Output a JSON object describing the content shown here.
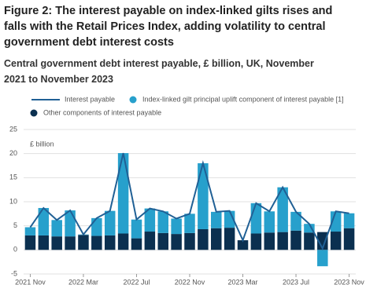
{
  "chart_data": {
    "type": "bar",
    "title": "Figure 2: The interest payable on index-linked gilts rises and falls with the Retail Prices Index, adding volatility to central government debt interest costs",
    "subtitle": "Central government debt interest payable, £ billion, UK, November 2021 to November 2023",
    "y_label": "£ billion",
    "categories": [
      "2021 Nov",
      null,
      null,
      null,
      "2022 Mar",
      null,
      null,
      null,
      "2022 Jul",
      null,
      null,
      null,
      "2022 Nov",
      null,
      null,
      null,
      "2023 Mar",
      null,
      null,
      null,
      "2023 Jul",
      null,
      null,
      null,
      "2023 Nov"
    ],
    "series": [
      {
        "name": "Other components of interest payable",
        "color": "#0b3050",
        "type": "bar",
        "values": [
          3.0,
          3.0,
          2.8,
          2.8,
          3.1,
          2.9,
          3.0,
          3.4,
          2.4,
          3.8,
          3.5,
          3.3,
          3.5,
          4.3,
          4.5,
          4.6,
          2.0,
          3.4,
          3.6,
          3.7,
          4.0,
          3.6,
          3.7,
          3.8,
          4.5
        ]
      },
      {
        "name": "Index-linked gilt principal uplift component of interest payable [1]",
        "color": "#27a0cc",
        "type": "bar",
        "values": [
          1.7,
          5.7,
          3.4,
          5.4,
          0.1,
          3.7,
          5.1,
          16.7,
          3.9,
          4.8,
          4.5,
          3.2,
          4.0,
          13.7,
          3.4,
          3.5,
          0,
          6.3,
          4.4,
          9.3,
          3.9,
          1.8,
          -3.4,
          4.2,
          3.1
        ]
      },
      {
        "name": "Interest payable",
        "color": "#206095",
        "type": "line",
        "values": [
          4.7,
          8.7,
          6.2,
          8.2,
          3.2,
          6.6,
          8.1,
          20.1,
          6.3,
          8.6,
          8.0,
          6.5,
          7.5,
          18.0,
          7.9,
          8.1,
          2.0,
          9.7,
          8.0,
          13.0,
          7.9,
          5.4,
          0.3,
          8.0,
          7.6
        ]
      }
    ],
    "ylim": [
      -5,
      25
    ],
    "yticks": [
      -5,
      0,
      5,
      10,
      15,
      20,
      25
    ],
    "grid": true
  }
}
